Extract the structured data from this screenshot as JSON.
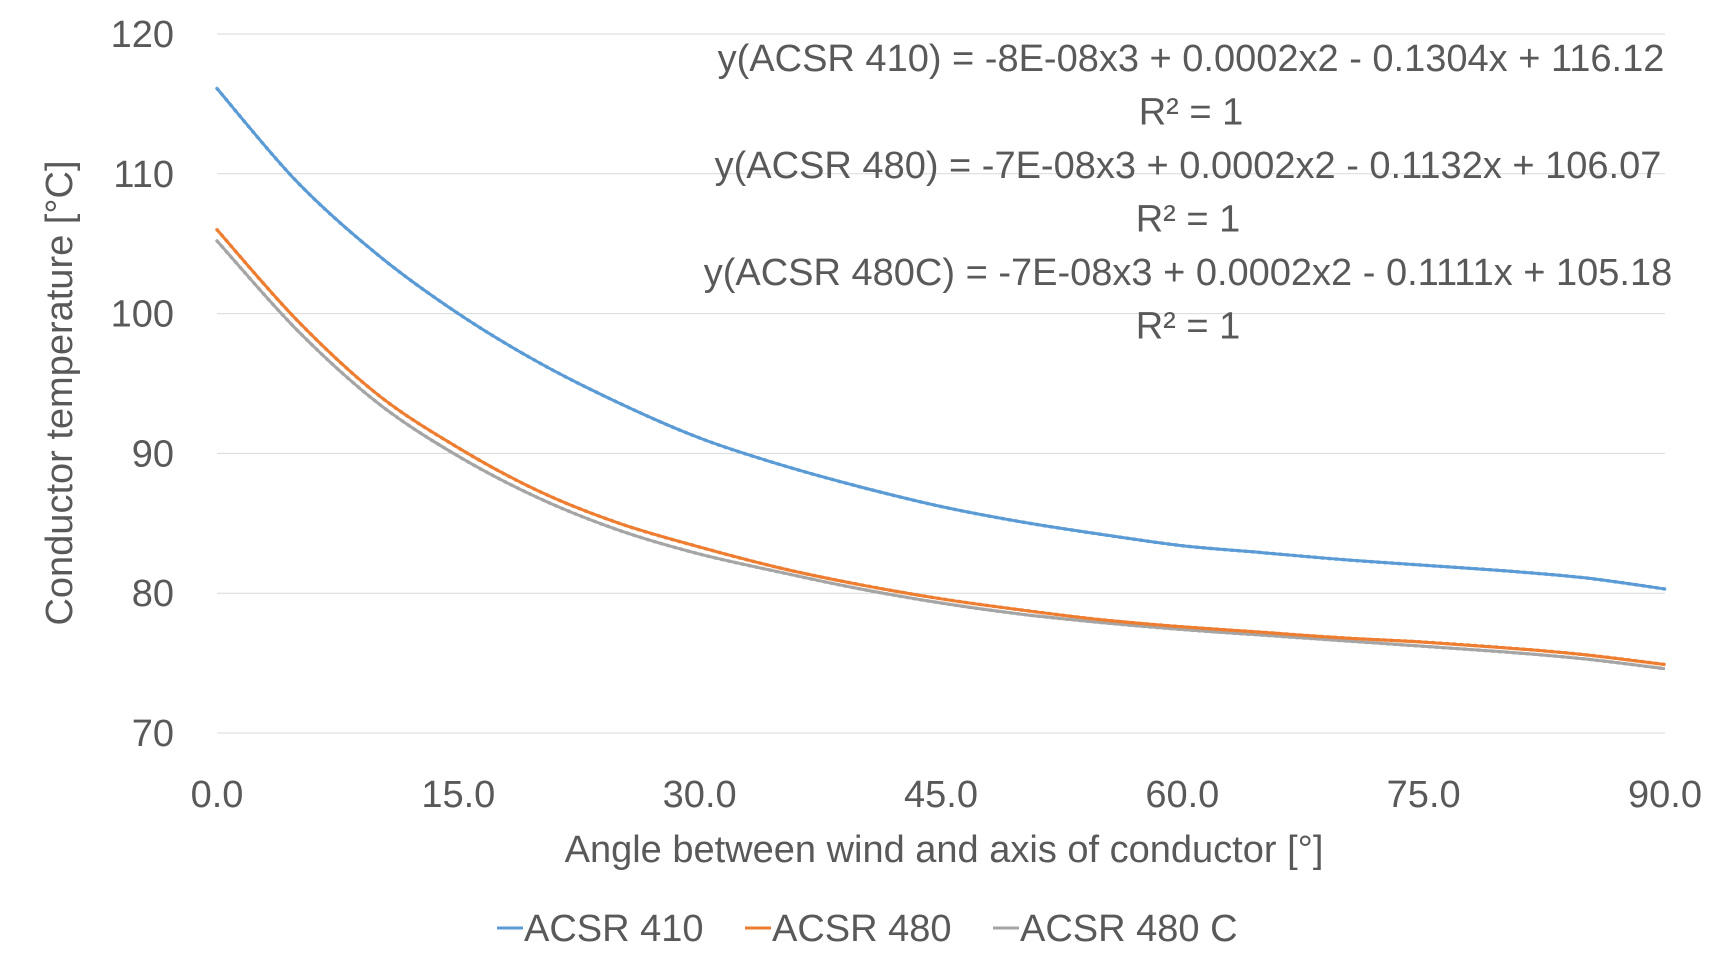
{
  "chart_data": {
    "type": "line",
    "title": "",
    "xlabel": "Angle between wind and axis of conductor [°]",
    "ylabel": "Conductor temperature [°C]",
    "xlim": [
      0,
      90
    ],
    "ylim": [
      70,
      120
    ],
    "x_ticks": [
      "0.0",
      "15.0",
      "30.0",
      "45.0",
      "60.0",
      "75.0",
      "90.0"
    ],
    "y_ticks": [
      "70",
      "80",
      "90",
      "100",
      "110",
      "120"
    ],
    "grid": "horizontal",
    "legend_position": "bottom",
    "x": [
      0,
      5,
      10,
      15,
      20,
      25,
      30,
      35,
      40,
      45,
      50,
      55,
      60,
      65,
      70,
      75,
      80,
      85,
      90
    ],
    "series": [
      {
        "name": "ACSR 410",
        "color": "#5b9bd5",
        "values": [
          116.1,
          109.4,
          104.2,
          100.0,
          96.5,
          93.6,
          91.1,
          89.2,
          87.6,
          86.2,
          85.1,
          84.2,
          83.4,
          82.9,
          82.4,
          82.0,
          81.6,
          81.1,
          80.3
        ]
      },
      {
        "name": "ACSR 480",
        "color": "#ed7d31",
        "values": [
          106.0,
          99.5,
          94.2,
          90.4,
          87.3,
          85.0,
          83.3,
          81.8,
          80.6,
          79.6,
          78.8,
          78.1,
          77.6,
          77.2,
          76.8,
          76.5,
          76.1,
          75.6,
          74.9
        ]
      },
      {
        "name": "ACSR 480 C",
        "color": "#a5a5a5",
        "values": [
          105.2,
          98.8,
          93.6,
          89.8,
          86.8,
          84.5,
          82.8,
          81.5,
          80.3,
          79.3,
          78.5,
          77.9,
          77.4,
          77.0,
          76.6,
          76.2,
          75.8,
          75.3,
          74.6
        ]
      }
    ],
    "annotations": [
      "y(ACSR 410) = -8E-08x3 + 0.0002x2 - 0.1304x + 116.12",
      "R² = 1",
      "y(ACSR 480) = -7E-08x3 + 0.0002x2 - 0.1132x + 106.07",
      "R² = 1",
      "y(ACSR 480C) = -7E-08x3 + 0.0002x2 - 0.1111x + 105.18",
      "R² = 1"
    ]
  }
}
